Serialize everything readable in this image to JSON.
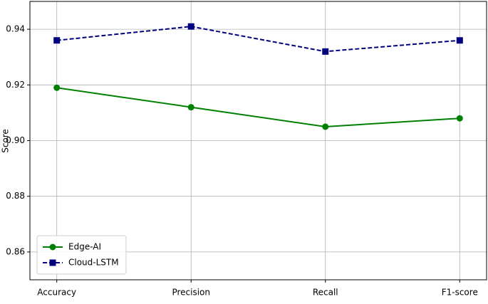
{
  "chart_data": {
    "type": "line",
    "y_label": "Score",
    "categories": [
      "Accuracy",
      "Precision",
      "Recall",
      "F1-score"
    ],
    "series": [
      {
        "name": "Edge-AI",
        "color": "#008000",
        "marker": "circle",
        "dash": "solid",
        "values": [
          0.919,
          0.912,
          0.905,
          0.908
        ]
      },
      {
        "name": "Cloud-LSTM",
        "color": "#000080",
        "marker": "square",
        "dash": "dashed",
        "values": [
          0.936,
          0.941,
          0.932,
          0.936
        ]
      }
    ],
    "ylim": [
      0.85,
      0.95
    ],
    "yticks": [
      0.86,
      0.88,
      {
        "value": 0.9,
        "label": "0.90"
      },
      0.92,
      0.94
    ],
    "grid": true,
    "legend": "lower left"
  }
}
